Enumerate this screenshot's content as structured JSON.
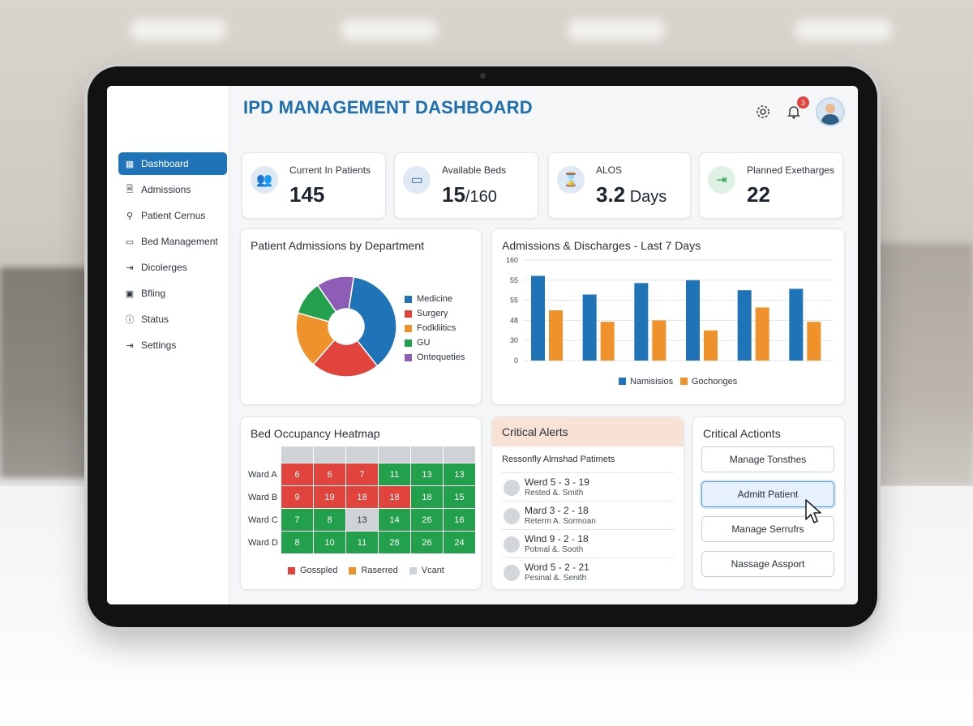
{
  "app": {
    "title": "IPD MANAGEMENT DASHBOARD"
  },
  "header": {
    "settings_icon": "gear-icon",
    "notifications_icon": "bell-icon",
    "notification_count": "3",
    "avatar_icon": "user-avatar"
  },
  "sidebar": {
    "items": [
      {
        "label": "Dashboard",
        "icon": "grid-icon",
        "active": true
      },
      {
        "label": "Admissions",
        "icon": "document-icon"
      },
      {
        "label": "Patient Cernus",
        "icon": "person-icon"
      },
      {
        "label": "Bed Management",
        "icon": "bed-icon"
      },
      {
        "label": "Dicolerges",
        "icon": "exit-icon"
      },
      {
        "label": "Bfling",
        "icon": "billing-icon"
      },
      {
        "label": "Status",
        "icon": "info-icon"
      },
      {
        "label": "Settings",
        "icon": "logout-icon"
      }
    ]
  },
  "kpis": [
    {
      "label": "Current In Patients",
      "value": "145",
      "unit": "",
      "icon": "people-icon"
    },
    {
      "label": "Available Beds",
      "value": "15",
      "unit": "/160",
      "icon": "bed-icon"
    },
    {
      "label": "ALOS",
      "value": "3.2",
      "unit": " Days",
      "icon": "hourglass-icon"
    },
    {
      "label": "Planned Exetharges",
      "value": "22",
      "unit": "",
      "icon": "exit-icon"
    }
  ],
  "colors": {
    "blue": "#1f73b7",
    "red": "#e0443c",
    "orange": "#f0922b",
    "green": "#22a04b",
    "purple": "#8e5db5",
    "grey": "#cfd2d6"
  },
  "charts": {
    "pie_title": "Patient Admissions by Department",
    "bar_title": "Admissions & Discharges - Last 7 Days",
    "heatmap_title": "Bed Occupancy Heatmap"
  },
  "chart_data": [
    {
      "type": "pie",
      "title": "Patient Admissions by Department",
      "categories": [
        "Medicine",
        "Surgery",
        "Fodkliitics",
        "GU",
        "Ontequeties"
      ],
      "values": [
        37,
        22,
        18,
        11,
        12
      ],
      "colors": [
        "#1f73b7",
        "#e0443c",
        "#f0922b",
        "#22a04b",
        "#8e5db5"
      ],
      "donut": true
    },
    {
      "type": "bar",
      "title": "Admissions & Discharges - Last 7 Days",
      "y_tick_labels": [
        "0",
        "30",
        "48",
        "55",
        "55",
        "160"
      ],
      "series": [
        {
          "name": "Namisisios",
          "color": "#1f73b7",
          "values": [
            5.9,
            4.6,
            5.4,
            5.6,
            4.9,
            5.0
          ]
        },
        {
          "name": "Gochonges",
          "color": "#f0922b",
          "values": [
            3.5,
            2.7,
            2.8,
            2.1,
            3.7,
            2.7
          ]
        }
      ],
      "ylim": [
        0,
        7.0
      ],
      "legend": "bottom",
      "grid": true
    },
    {
      "type": "heatmap",
      "title": "Bed Occupancy Heatmap",
      "rows": [
        "Ward A",
        "Ward B",
        "Ward C",
        "Ward D"
      ],
      "cells": [
        [
          {
            "v": "6",
            "s": "r"
          },
          {
            "v": "6",
            "s": "r"
          },
          {
            "v": "7",
            "s": "r"
          },
          {
            "v": "11",
            "s": "g"
          },
          {
            "v": "13",
            "s": "g"
          },
          {
            "v": "13",
            "s": "g"
          }
        ],
        [
          {
            "v": "9",
            "s": "r"
          },
          {
            "v": "19",
            "s": "r"
          },
          {
            "v": "18",
            "s": "r"
          },
          {
            "v": "18",
            "s": "r"
          },
          {
            "v": "18",
            "s": "g"
          },
          {
            "v": "15",
            "s": "g"
          }
        ],
        [
          {
            "v": "7",
            "s": "g"
          },
          {
            "v": "8",
            "s": "g"
          },
          {
            "v": "13",
            "s": "v"
          },
          {
            "v": "14",
            "s": "g"
          },
          {
            "v": "26",
            "s": "g"
          },
          {
            "v": "16",
            "s": "g"
          }
        ],
        [
          {
            "v": "8",
            "s": "g"
          },
          {
            "v": "10",
            "s": "g"
          },
          {
            "v": "11",
            "s": "g"
          },
          {
            "v": "28",
            "s": "g"
          },
          {
            "v": "26",
            "s": "g"
          },
          {
            "v": "24",
            "s": "g"
          }
        ]
      ],
      "legend": [
        {
          "label": "Gosspled",
          "color": "#e0443c"
        },
        {
          "label": "Raserred",
          "color": "#f0922b"
        },
        {
          "label": "Vcant",
          "color": "#cfd2d6"
        }
      ]
    }
  ],
  "alerts": {
    "title": "Critical Alerts",
    "subtitle": "Ressonfly Almshad Patimets",
    "items": [
      {
        "line1": "Werd 5 - 3 - 19",
        "line2": "Rested &. Smith"
      },
      {
        "line1": "Mard 3 - 2 - 18",
        "line2": "Reterm A. Sormoan"
      },
      {
        "line1": "Wind 9 - 2 - 18",
        "line2": "Potmal &. Sooth"
      },
      {
        "line1": "Word 5 - 2 - 21",
        "line2": "Pesinal &. Senith"
      }
    ]
  },
  "actions": {
    "title": "Critical Actionts",
    "buttons": [
      "Manage Tonsthes",
      "Admitt Patient",
      "Manage Serrufrs",
      "Nassage Assport"
    ]
  }
}
